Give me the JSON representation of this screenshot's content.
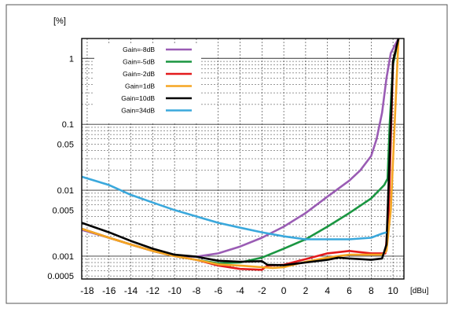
{
  "chart_data": {
    "type": "line",
    "ylabel": "[%]",
    "xlabel": "[dBu]",
    "x_ticks": [
      -18,
      -16,
      -14,
      -12,
      -10,
      -8,
      -6,
      -4,
      -2,
      0,
      2,
      4,
      6,
      8,
      10
    ],
    "y_ticks": [
      {
        "value": 1,
        "label": "1"
      },
      {
        "value": 0.1,
        "label": "0.1"
      },
      {
        "value": 0.05,
        "label": "0.05"
      },
      {
        "value": 0.01,
        "label": "0.01"
      },
      {
        "value": 0.005,
        "label": "0.005"
      },
      {
        "value": 0.001,
        "label": "0.001"
      },
      {
        "value": 0.0005,
        "label": "0.0005"
      }
    ],
    "xlim": [
      -18.5,
      11
    ],
    "ylim": [
      0.00045,
      2
    ],
    "y_scale": "log",
    "grid": true,
    "legend_position": "top-left",
    "series": [
      {
        "name": "Gain=-8dB",
        "color": "#9a5cb4",
        "points": [
          [
            -18.5,
            0.0025
          ],
          [
            -16,
            0.0019
          ],
          [
            -14,
            0.0015
          ],
          [
            -12,
            0.0012
          ],
          [
            -10,
            0.001
          ],
          [
            -8,
            0.00098
          ],
          [
            -6,
            0.0011
          ],
          [
            -4,
            0.0014
          ],
          [
            -2,
            0.0019
          ],
          [
            0,
            0.0028
          ],
          [
            2,
            0.0045
          ],
          [
            4,
            0.008
          ],
          [
            6,
            0.014
          ],
          [
            7,
            0.02
          ],
          [
            8,
            0.033
          ],
          [
            8.5,
            0.06
          ],
          [
            9,
            0.15
          ],
          [
            9.4,
            0.5
          ],
          [
            9.8,
            1.2
          ],
          [
            10.5,
            2
          ]
        ]
      },
      {
        "name": "Gain=-5dB",
        "color": "#1a9641",
        "points": [
          [
            -18.5,
            0.0026
          ],
          [
            -16,
            0.0019
          ],
          [
            -14,
            0.0015
          ],
          [
            -12,
            0.0012
          ],
          [
            -10,
            0.001
          ],
          [
            -8,
            0.00088
          ],
          [
            -6,
            0.00078
          ],
          [
            -4,
            0.0008
          ],
          [
            -2,
            0.00095
          ],
          [
            0,
            0.0013
          ],
          [
            2,
            0.0018
          ],
          [
            4,
            0.0028
          ],
          [
            6,
            0.0045
          ],
          [
            8,
            0.0075
          ],
          [
            9.2,
            0.012
          ],
          [
            9.5,
            0.015
          ],
          [
            9.7,
            0.1
          ],
          [
            10,
            0.8
          ],
          [
            10.5,
            2
          ]
        ]
      },
      {
        "name": "Gain=-2dB",
        "color": "#e31a1c",
        "points": [
          [
            -18.5,
            0.0026
          ],
          [
            -16,
            0.0019
          ],
          [
            -14,
            0.0015
          ],
          [
            -12,
            0.0012
          ],
          [
            -10,
            0.001
          ],
          [
            -8,
            0.00088
          ],
          [
            -6,
            0.00072
          ],
          [
            -4,
            0.00064
          ],
          [
            -2,
            0.00062
          ],
          [
            -1.5,
            0.00072
          ],
          [
            0,
            0.00074
          ],
          [
            2,
            0.0009
          ],
          [
            4,
            0.0011
          ],
          [
            6,
            0.0012
          ],
          [
            8,
            0.0011
          ],
          [
            9.3,
            0.0011
          ],
          [
            9.6,
            0.004
          ],
          [
            10,
            0.9
          ],
          [
            10.5,
            2
          ]
        ]
      },
      {
        "name": "Gain=1dB",
        "color": "#f5a623",
        "points": [
          [
            -18.5,
            0.0026
          ],
          [
            -16,
            0.0019
          ],
          [
            -14,
            0.0015
          ],
          [
            -12,
            0.0012
          ],
          [
            -10,
            0.001
          ],
          [
            -8,
            0.00088
          ],
          [
            -6,
            0.00075
          ],
          [
            -4,
            0.00072
          ],
          [
            -2,
            0.00068
          ],
          [
            -1,
            0.00066
          ],
          [
            0,
            0.00068
          ],
          [
            2,
            0.00082
          ],
          [
            4,
            0.00095
          ],
          [
            6,
            0.00105
          ],
          [
            8,
            0.00105
          ],
          [
            9,
            0.00105
          ],
          [
            9.4,
            0.0012
          ],
          [
            9.8,
            0.005
          ],
          [
            10.5,
            2
          ]
        ]
      },
      {
        "name": "Gain=10dB",
        "color": "#000000",
        "points": [
          [
            -18.5,
            0.0032
          ],
          [
            -16,
            0.0023
          ],
          [
            -14,
            0.0017
          ],
          [
            -12,
            0.0013
          ],
          [
            -10,
            0.00105
          ],
          [
            -8,
            0.00098
          ],
          [
            -6,
            0.00085
          ],
          [
            -4,
            0.00082
          ],
          [
            -2,
            0.00084
          ],
          [
            -1.5,
            0.00074
          ],
          [
            0,
            0.00073
          ],
          [
            2,
            0.0008
          ],
          [
            4,
            0.00088
          ],
          [
            5,
            0.00095
          ],
          [
            6,
            0.00092
          ],
          [
            7,
            0.0009
          ],
          [
            8,
            0.00088
          ],
          [
            9,
            0.00092
          ],
          [
            9.4,
            0.0015
          ],
          [
            10,
            0.9
          ],
          [
            10.5,
            2
          ]
        ]
      },
      {
        "name": "Gain=34dB",
        "color": "#3aa8dc",
        "points": [
          [
            -18.5,
            0.016
          ],
          [
            -16,
            0.012
          ],
          [
            -14,
            0.0085
          ],
          [
            -12,
            0.0065
          ],
          [
            -10,
            0.005
          ],
          [
            -8,
            0.004
          ],
          [
            -6,
            0.0032
          ],
          [
            -4,
            0.0027
          ],
          [
            -2,
            0.0023
          ],
          [
            0,
            0.002
          ],
          [
            2,
            0.0018
          ],
          [
            4,
            0.0018
          ],
          [
            6,
            0.0018
          ],
          [
            8,
            0.0019
          ],
          [
            9,
            0.0022
          ],
          [
            9.4,
            0.0023
          ]
        ]
      }
    ]
  }
}
